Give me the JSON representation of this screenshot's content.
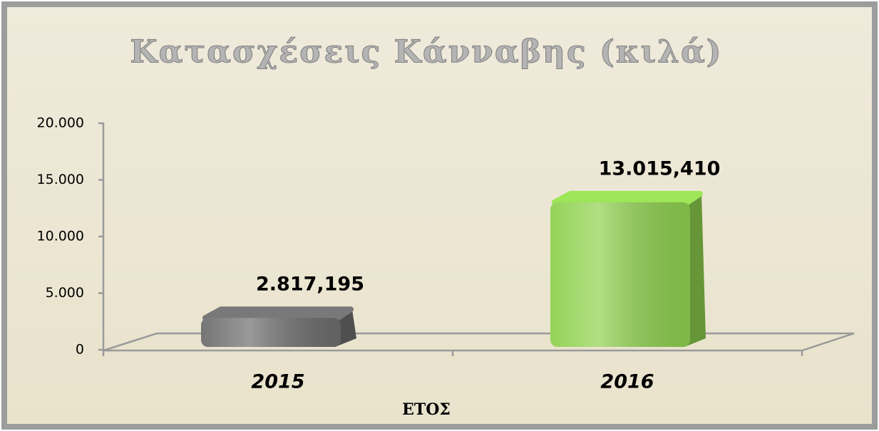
{
  "chart_data": {
    "type": "bar3d",
    "title": "Κατασχέσεις Κάνναβης (κιλά)",
    "x_label": "ΕΤΟΣ",
    "categories": [
      "2015",
      "2016"
    ],
    "values": [
      2817.195,
      13015.41
    ],
    "value_labels": [
      "2.817,195",
      "13.015,410"
    ],
    "colors": [
      "#6e6e6e",
      "#8fd14f"
    ],
    "ylim": [
      0,
      20000
    ],
    "yticks": [
      0,
      {
        "value": 5000,
        "label": "5.000"
      },
      {
        "value": 10000,
        "label": "10.000"
      },
      {
        "value": 15000,
        "label": "15.000"
      },
      {
        "value": 20000,
        "label": "20.000"
      }
    ]
  }
}
